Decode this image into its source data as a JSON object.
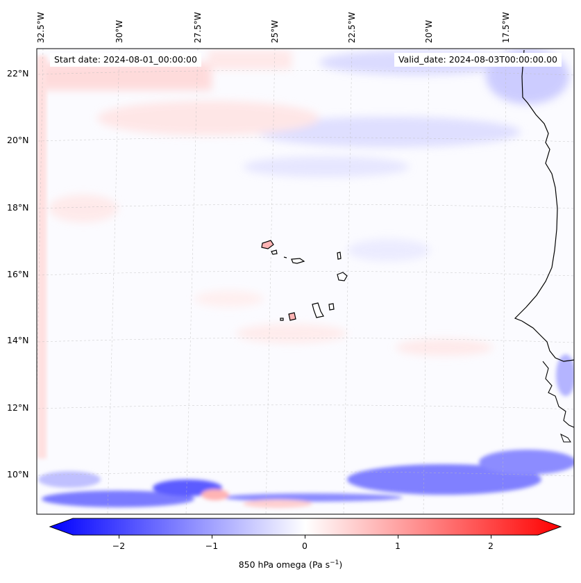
{
  "map": {
    "start_date": "Start date: 2024-08-01_00:00:00",
    "valid_date": "Valid_date: 2024-08-03T00:00:00.00",
    "longitude_labels": [
      "32.5°W",
      "30°W",
      "27.5°W",
      "25°W",
      "22.5°W",
      "20°W",
      "17.5°W"
    ],
    "latitude_labels": [
      "22°N",
      "20°N",
      "18°N",
      "16°N",
      "14°N",
      "12°N",
      "10°N"
    ],
    "field": "850 hPa omega"
  },
  "colorbar": {
    "label_main": "850 hPa omega (Pa s",
    "label_exp": "−1",
    "label_close": ")",
    "ticks": [
      "−2",
      "−1",
      "0",
      "1",
      "2"
    ],
    "min_color": "#0000ff",
    "mid_color": "#ffffff",
    "max_color": "#ff0000"
  },
  "colors": {
    "coastline": "#000000",
    "gridline": "#bbbbbb"
  }
}
